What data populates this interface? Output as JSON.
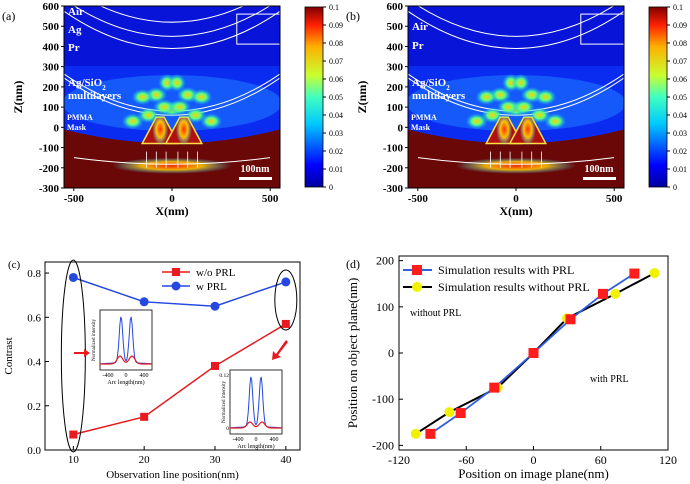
{
  "chart_data": [
    {
      "type": "heatmap",
      "panel_label": "(a)",
      "xlabel": "X(nm)",
      "ylabel": "Z(nm)",
      "xlim": [
        -550,
        550
      ],
      "ylim": [
        -300,
        600
      ],
      "xticks": [
        "-500",
        "0",
        "500"
      ],
      "yticks": [
        "600",
        "500",
        "400",
        "300",
        "200",
        "100",
        "0",
        "-100",
        "-200",
        "-300"
      ],
      "layer_labels": [
        "Air",
        "Ag",
        "Pr",
        "PMMA",
        "Mask"
      ],
      "multilayer_label_line1": "Ag/SiO",
      "multilayer_subscript": "2",
      "multilayer_label_line2": "multilayers",
      "scale_bar": "100nm",
      "colorbar": {
        "min": 0,
        "max": 0.1,
        "ticks": [
          "0.1",
          "0.09",
          "0.08",
          "0.07",
          "0.06",
          "0.05",
          "0.04",
          "0.03",
          "0.02",
          "0.01",
          "0"
        ]
      }
    },
    {
      "type": "heatmap",
      "panel_label": "(b)",
      "xlabel": "X(nm)",
      "ylabel": "Z(nm)",
      "xlim": [
        -550,
        550
      ],
      "ylim": [
        -300,
        600
      ],
      "xticks": [
        "-500",
        "0",
        "500"
      ],
      "yticks": [
        "600",
        "500",
        "400",
        "300",
        "200",
        "100",
        "0",
        "-100",
        "-200",
        "-300"
      ],
      "layer_labels": [
        "Air",
        "Pr",
        "PMMA",
        "Mask"
      ],
      "multilayer_label_line1": "Ag/SiO",
      "multilayer_subscript": "2",
      "multilayer_label_line2": "multilayers",
      "scale_bar": "100nm",
      "colorbar": {
        "min": 0,
        "max": 0.1,
        "ticks": [
          "0.1",
          "0.09",
          "0.08",
          "0.07",
          "0.06",
          "0.05",
          "0.04",
          "0.03",
          "0.02",
          "0.01",
          "0"
        ]
      }
    },
    {
      "type": "line",
      "panel_label": "(c)",
      "xlabel": "Observation line position(nm)",
      "ylabel": "Contrast",
      "xlim": [
        6,
        42
      ],
      "ylim": [
        0,
        0.85
      ],
      "xticks": [
        10,
        20,
        30,
        40
      ],
      "yticks": [
        0.0,
        0.2,
        0.4,
        0.6,
        0.8
      ],
      "x": [
        10,
        20,
        30,
        40
      ],
      "series": [
        {
          "name": "w/o  PRL",
          "color": "#e8191f",
          "marker": "square",
          "values": [
            0.07,
            0.15,
            0.38,
            0.57
          ]
        },
        {
          "name": "w    PRL",
          "color": "#2448e0",
          "marker": "circle",
          "values": [
            0.78,
            0.67,
            0.65,
            0.76
          ]
        }
      ],
      "insets": [
        {
          "ylabel": "Normalized intensity",
          "xlabel": "Arc length(nm)",
          "xticks": [
            "-400",
            "0",
            "400"
          ],
          "yticks": []
        },
        {
          "ylabel": "Normalized intensity",
          "xlabel": "Arc length(nm)",
          "xticks": [
            "-400",
            "0",
            "400"
          ],
          "yticks": [
            "0",
            "0.12"
          ]
        }
      ]
    },
    {
      "type": "line",
      "panel_label": "(d)",
      "xlabel": "Position on image plane(nm)",
      "ylabel": "Position on object plane(nm)",
      "xlim": [
        -120,
        120
      ],
      "ylim": [
        -210,
        210
      ],
      "xticks": [
        -120,
        -60,
        0,
        60,
        120
      ],
      "yticks": [
        200,
        100,
        0,
        -100,
        -200
      ],
      "series": [
        {
          "name": "Simulation results with PRL",
          "color": "#3060e0",
          "marker_color": "#ff1c1c",
          "marker": "square",
          "x": [
            -92,
            -65,
            -35,
            0,
            33,
            62,
            90
          ],
          "y": [
            -175,
            -130,
            -75,
            0,
            73,
            128,
            172
          ]
        },
        {
          "name": "Simulation results without PRL",
          "color": "#000000",
          "marker_color": "#f2f200",
          "marker": "circle",
          "x": [
            -105,
            -75,
            -32,
            0,
            30,
            73,
            108
          ],
          "y": [
            -175,
            -128,
            -75,
            0,
            75,
            128,
            173
          ]
        }
      ],
      "faint_annotations": [
        "without PRL",
        "with PRL"
      ]
    }
  ]
}
